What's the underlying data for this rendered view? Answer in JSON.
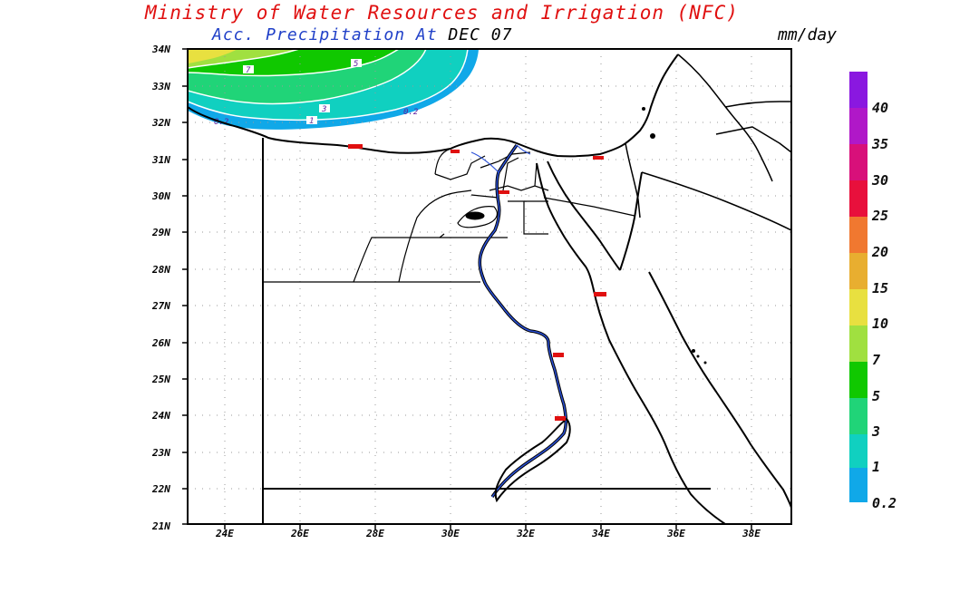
{
  "title": "Ministry of Water Resources and Irrigation (NFC)",
  "subtitle": {
    "variable": "Acc. Precipitation",
    "at": "At",
    "date": "DEC 07"
  },
  "units": "mm/day",
  "axes": {
    "lat_labels": [
      "34N",
      "33N",
      "32N",
      "31N",
      "30N",
      "29N",
      "28N",
      "27N",
      "26N",
      "25N",
      "24N",
      "23N",
      "22N",
      "21N"
    ],
    "lon_labels": [
      "24E",
      "26E",
      "28E",
      "30E",
      "32E",
      "34E",
      "36E",
      "38E"
    ]
  },
  "colorbar": {
    "labels": [
      "40",
      "35",
      "30",
      "25",
      "20",
      "15",
      "10",
      "7",
      "5",
      "3",
      "1",
      "0.2"
    ],
    "colors": [
      "#8a18e0",
      "#b018c8",
      "#d8107a",
      "#e8103c",
      "#f00000",
      "#f07830",
      "#e8ae30",
      "#e8e040",
      "#a0e040",
      "#10c800",
      "#20d478",
      "#10d0c0",
      "#10a8e8"
    ]
  },
  "contour_labels": [
    "7",
    "5",
    "3",
    "1",
    "0.2",
    "0.2"
  ],
  "map_legend": {
    "precip_level_colors": [
      "#e8e040",
      "#a0e040",
      "#10c800",
      "#20d478",
      "#10d0c0",
      "#10a8e8"
    ]
  }
}
